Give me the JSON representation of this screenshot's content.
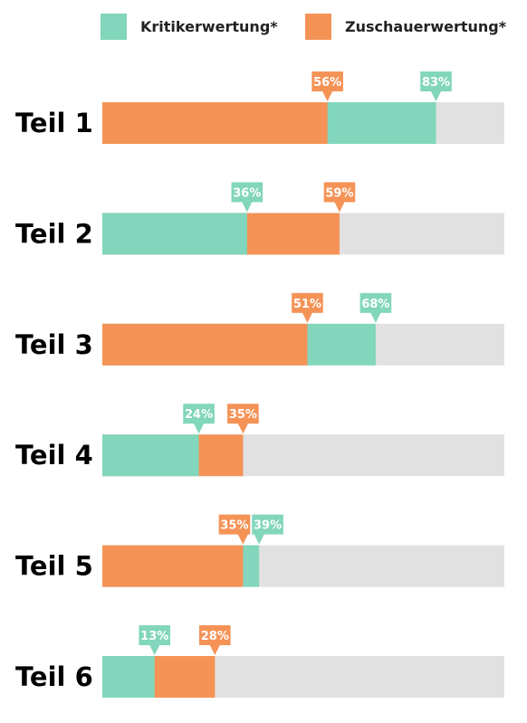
{
  "chart_data": {
    "type": "bar",
    "orientation": "horizontal",
    "categories": [
      "Teil 1",
      "Teil 2",
      "Teil 3",
      "Teil 4",
      "Teil 5",
      "Teil 6"
    ],
    "series": [
      {
        "name": "Kritikerwertung*",
        "values": [
          83,
          36,
          68,
          24,
          39,
          13
        ],
        "color": "#82d6bb"
      },
      {
        "name": "Zuschauerwertung*",
        "values": [
          56,
          59,
          51,
          35,
          35,
          28
        ],
        "color": "#f59357"
      }
    ],
    "value_suffix": "%",
    "xlim": [
      0,
      100
    ],
    "track_color": "#e1e1e1",
    "legend": "top",
    "grid": false
  }
}
